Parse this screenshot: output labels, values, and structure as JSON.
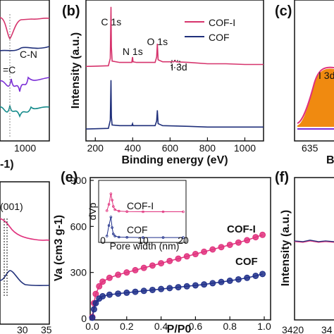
{
  "panels": {
    "a": {
      "label": "",
      "annotations": [
        "C-N",
        "=C"
      ],
      "xticks": [
        "1000"
      ],
      "xlabel_fragment": "-1)"
    },
    "b": {
      "label": "(b)"
    },
    "c": {
      "label": "(c)",
      "peak_label": "I 3d",
      "xticks": [
        "635"
      ],
      "xlabel_fragment": "B"
    },
    "d": {
      "label": "",
      "annotation": "(001)",
      "xticks": [
        "30",
        "35"
      ]
    },
    "e": {
      "label": "(e)"
    },
    "f": {
      "label": "(f)",
      "ylabel": "Intensity (a.u.)",
      "xticks": [
        "3420",
        "34"
      ]
    }
  },
  "chart_data": [
    {
      "panel": "b",
      "type": "line",
      "xlabel": "Binding energy (eV)",
      "ylabel": "Intensity (a.u.)",
      "xlim": [
        150,
        1100
      ],
      "xticks": [
        200,
        400,
        600,
        800,
        1000
      ],
      "legend_position": "top-right",
      "peak_labels": [
        {
          "text": "C 1s",
          "x": 285
        },
        {
          "text": "N 1s",
          "x": 400
        },
        {
          "text": "O 1s",
          "x": 532
        },
        {
          "text": "I 3d",
          "x": 625
        }
      ],
      "series": [
        {
          "name": "COF-I",
          "color": "#d6336c",
          "x": [
            150,
            270,
            280,
            284,
            286,
            290,
            330,
            395,
            399,
            402,
            420,
            520,
            528,
            532,
            536,
            560,
            620,
            626,
            632,
            700,
            800,
            900,
            1000,
            1100
          ],
          "y": [
            0.06,
            0.07,
            0.18,
            0.95,
            0.35,
            0.14,
            0.12,
            0.12,
            0.2,
            0.13,
            0.12,
            0.12,
            0.2,
            0.4,
            0.16,
            0.13,
            0.13,
            0.15,
            0.13,
            0.12,
            0.1,
            0.1,
            0.09,
            0.09
          ]
        },
        {
          "name": "COF",
          "color": "#1f2f7a",
          "x": [
            150,
            270,
            280,
            284,
            286,
            290,
            330,
            395,
            399,
            402,
            420,
            520,
            528,
            532,
            536,
            560,
            700,
            800,
            900,
            1000,
            1100
          ],
          "y": [
            0.02,
            0.03,
            0.15,
            0.75,
            0.2,
            0.08,
            0.07,
            0.07,
            0.1,
            0.07,
            0.07,
            0.07,
            0.14,
            0.3,
            0.1,
            0.07,
            0.06,
            0.05,
            0.05,
            0.05,
            0.05
          ]
        }
      ]
    },
    {
      "panel": "e",
      "type": "scatter",
      "xlabel": "P/P0",
      "ylabel": "Va (cm3 g-1)",
      "xlim": [
        0,
        1.0
      ],
      "ylim": [
        0,
        900
      ],
      "xticks": [
        0.0,
        0.2,
        0.4,
        0.6,
        0.8,
        1.0
      ],
      "yticks": [
        0,
        300,
        600,
        900
      ],
      "series": [
        {
          "name": "COF-I",
          "color": "#e0307c",
          "x": [
            0.0,
            0.01,
            0.02,
            0.04,
            0.06,
            0.1,
            0.15,
            0.2,
            0.25,
            0.3,
            0.35,
            0.4,
            0.45,
            0.5,
            0.55,
            0.6,
            0.65,
            0.7,
            0.75,
            0.8,
            0.85,
            0.9,
            0.95,
            0.99
          ],
          "y": [
            10,
            100,
            160,
            210,
            240,
            265,
            285,
            300,
            315,
            330,
            345,
            360,
            375,
            390,
            405,
            420,
            435,
            450,
            465,
            480,
            495,
            510,
            530,
            545
          ]
        },
        {
          "name": "COF",
          "color": "#1f2f8a",
          "x": [
            0.0,
            0.01,
            0.02,
            0.04,
            0.06,
            0.1,
            0.15,
            0.2,
            0.25,
            0.3,
            0.35,
            0.4,
            0.45,
            0.5,
            0.55,
            0.6,
            0.65,
            0.7,
            0.75,
            0.8,
            0.85,
            0.9,
            0.95,
            0.99
          ],
          "y": [
            5,
            60,
            100,
            130,
            145,
            155,
            162,
            168,
            174,
            180,
            186,
            192,
            198,
            204,
            210,
            216,
            222,
            230,
            238,
            246,
            255,
            265,
            278,
            290
          ]
        }
      ],
      "inset": {
        "type": "line",
        "xlabel": "Pore width (nm)",
        "ylabel": "dVp",
        "xlim": [
          0,
          20
        ],
        "xticks": [
          0,
          10,
          20
        ],
        "series": [
          {
            "name": "COF-I",
            "color": "#e0307c",
            "x": [
              1.0,
              1.5,
              2.0,
              2.3,
              2.6,
              3.0,
              4,
              6,
              10,
              15,
              20
            ],
            "y": [
              0.1,
              0.4,
              0.9,
              0.6,
              0.3,
              0.15,
              0.08,
              0.06,
              0.05,
              0.05,
              0.05
            ]
          },
          {
            "name": "COF",
            "color": "#1f2f8a",
            "x": [
              1.0,
              1.5,
              2.0,
              2.3,
              2.6,
              3.0,
              4,
              6,
              10,
              15,
              20
            ],
            "y": [
              0.1,
              0.6,
              1.0,
              0.5,
              0.2,
              0.1,
              0.05,
              0.04,
              0.03,
              0.03,
              0.03
            ]
          }
        ]
      }
    }
  ]
}
